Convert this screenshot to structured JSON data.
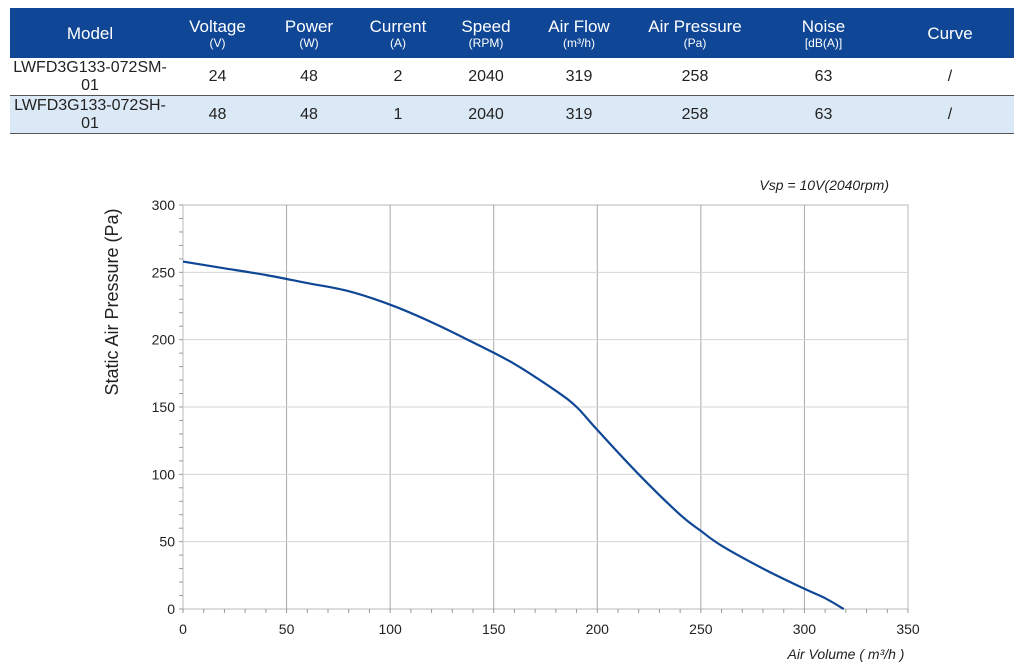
{
  "table": {
    "headers": [
      {
        "label": "Model",
        "unit": ""
      },
      {
        "label": "Voltage",
        "unit": "(V)"
      },
      {
        "label": "Power",
        "unit": "(W)"
      },
      {
        "label": "Current",
        "unit": "(A)"
      },
      {
        "label": "Speed",
        "unit": "(RPM)"
      },
      {
        "label": "Air Flow",
        "unit": "(m³/h)"
      },
      {
        "label": "Air Pressure",
        "unit": "(Pa)"
      },
      {
        "label": "Noise",
        "unit": "[dB(A)]"
      },
      {
        "label": "Curve",
        "unit": ""
      }
    ],
    "rows": [
      [
        "LWFD3G133-072SM-01",
        "24",
        "48",
        "2",
        "2040",
        "319",
        "258",
        "63",
        "/"
      ],
      [
        "LWFD3G133-072SH-01",
        "48",
        "48",
        "1",
        "2040",
        "319",
        "258",
        "63",
        "/"
      ]
    ]
  },
  "chart_data": {
    "type": "line",
    "annotation": "Vsp = 10V(2040rpm)",
    "xlabel": "Air Volume ( m³/h )",
    "ylabel": "Static Air Pressure  (Pa)",
    "xlim": [
      0,
      350
    ],
    "ylim": [
      0,
      300
    ],
    "xticks": [
      "0",
      "50",
      "100",
      "150",
      "200",
      "250",
      "300",
      "350"
    ],
    "yticks": [
      "0",
      "50",
      "100",
      "150",
      "200",
      "250",
      "300"
    ],
    "grid": true,
    "line_color": "#0f4796",
    "series": [
      {
        "x": [
          0,
          20,
          40,
          60,
          80,
          100,
          120,
          140,
          160,
          180,
          190,
          200,
          220,
          240,
          250,
          260,
          280,
          300,
          310,
          319
        ],
        "values": [
          258,
          253,
          248,
          242,
          236,
          226,
          213,
          198,
          182,
          162,
          150,
          133,
          100,
          70,
          58,
          47,
          30,
          15,
          8,
          0
        ]
      }
    ]
  }
}
